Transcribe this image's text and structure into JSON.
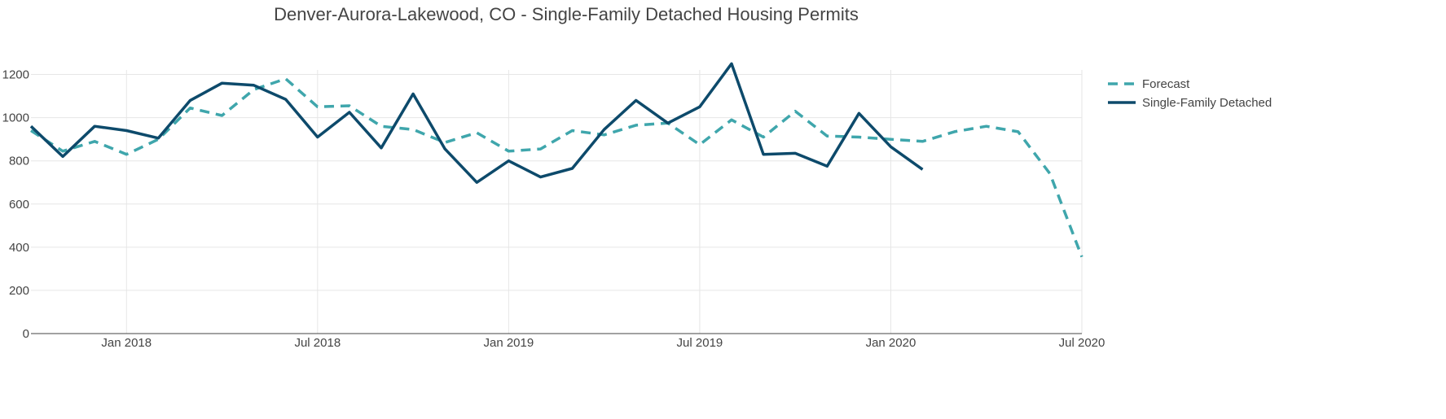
{
  "chart_data": {
    "type": "line",
    "title": "Denver-Aurora-Lakewood, CO - Single-Family Detached Housing Permits",
    "xlabel": "",
    "ylabel": "",
    "xlim": [
      "2017-10-01",
      "2020-07-01"
    ],
    "ylim": [
      0,
      1300
    ],
    "y_ticks": [
      0,
      200,
      400,
      600,
      800,
      1000,
      1200
    ],
    "x_ticks": [
      {
        "date": "2018-01-01",
        "label": "Jan 2018"
      },
      {
        "date": "2018-07-01",
        "label": "Jul 2018"
      },
      {
        "date": "2019-01-01",
        "label": "Jan 2019"
      },
      {
        "date": "2019-07-01",
        "label": "Jul 2019"
      },
      {
        "date": "2020-01-01",
        "label": "Jan 2020"
      },
      {
        "date": "2020-07-01",
        "label": "Jul 2020"
      }
    ],
    "grid": true,
    "legend_position": "top-right",
    "series": [
      {
        "name": "Forecast",
        "color": "#3fa6ac",
        "style": "dashed",
        "x": [
          "2017-10-01",
          "2017-11-01",
          "2017-12-01",
          "2018-01-01",
          "2018-02-01",
          "2018-03-01",
          "2018-04-01",
          "2018-05-01",
          "2018-06-01",
          "2018-07-01",
          "2018-08-01",
          "2018-09-01",
          "2018-10-01",
          "2018-11-01",
          "2018-12-01",
          "2019-01-01",
          "2019-02-01",
          "2019-03-01",
          "2019-04-01",
          "2019-05-01",
          "2019-06-01",
          "2019-07-01",
          "2019-08-01",
          "2019-09-01",
          "2019-10-01",
          "2019-11-01",
          "2019-12-01",
          "2020-01-01",
          "2020-02-01",
          "2020-03-01",
          "2020-04-01",
          "2020-05-01",
          "2020-06-01",
          "2020-07-01"
        ],
        "values": [
          940,
          845,
          890,
          830,
          900,
          1045,
          1010,
          1130,
          1180,
          1050,
          1055,
          960,
          945,
          885,
          930,
          845,
          855,
          940,
          920,
          965,
          975,
          875,
          990,
          910,
          1030,
          915,
          910,
          900,
          890,
          935,
          960,
          935,
          740,
          355
        ]
      },
      {
        "name": "Single-Family Detached",
        "color": "#0d4a6b",
        "style": "solid",
        "x": [
          "2017-10-01",
          "2017-11-01",
          "2017-12-01",
          "2018-01-01",
          "2018-02-01",
          "2018-03-01",
          "2018-04-01",
          "2018-05-01",
          "2018-06-01",
          "2018-07-01",
          "2018-08-01",
          "2018-09-01",
          "2018-10-01",
          "2018-11-01",
          "2018-12-01",
          "2019-01-01",
          "2019-02-01",
          "2019-03-01",
          "2019-04-01",
          "2019-05-01",
          "2019-06-01",
          "2019-07-01",
          "2019-08-01",
          "2019-09-01",
          "2019-10-01",
          "2019-11-01",
          "2019-12-01",
          "2020-01-01",
          "2020-02-01"
        ],
        "values": [
          960,
          820,
          960,
          940,
          905,
          1080,
          1160,
          1150,
          1085,
          910,
          1025,
          860,
          1110,
          855,
          700,
          800,
          725,
          765,
          945,
          1080,
          975,
          1050,
          1250,
          830,
          835,
          775,
          1020,
          865,
          760
        ]
      }
    ]
  }
}
